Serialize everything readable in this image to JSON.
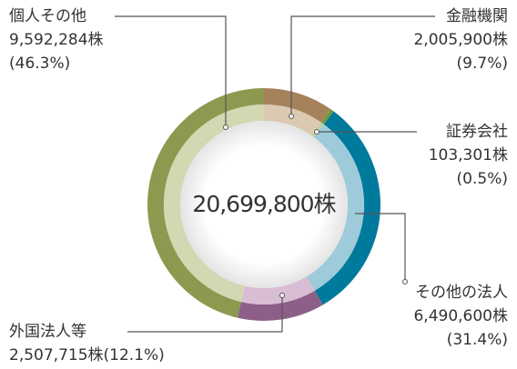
{
  "chart_data": {
    "type": "donut",
    "categories": [
      "金融機関",
      "証券会社",
      "その他の法人",
      "外国法人等",
      "個人その他"
    ],
    "values": [
      2005900,
      103301,
      6490600,
      2507715,
      9592284
    ],
    "value_labels": [
      "2,005,900株",
      "103,301株",
      "6,490,600株",
      "2,507,715株",
      "9,592,284株"
    ],
    "percent_labels": [
      "(9.7%)",
      "(0.5%)",
      "(31.4%)",
      "(12.1%)",
      "(46.3%)"
    ],
    "colors": [
      "#a6825a",
      "#6e9a3c",
      "#007a9c",
      "#8d5f88",
      "#8c9a50"
    ],
    "inner_colors": [
      "#dcc9b2",
      "#b9d394",
      "#9ecbd9",
      "#d9bdd5",
      "#d3d7b2"
    ],
    "total_label": "20,699,800株"
  }
}
